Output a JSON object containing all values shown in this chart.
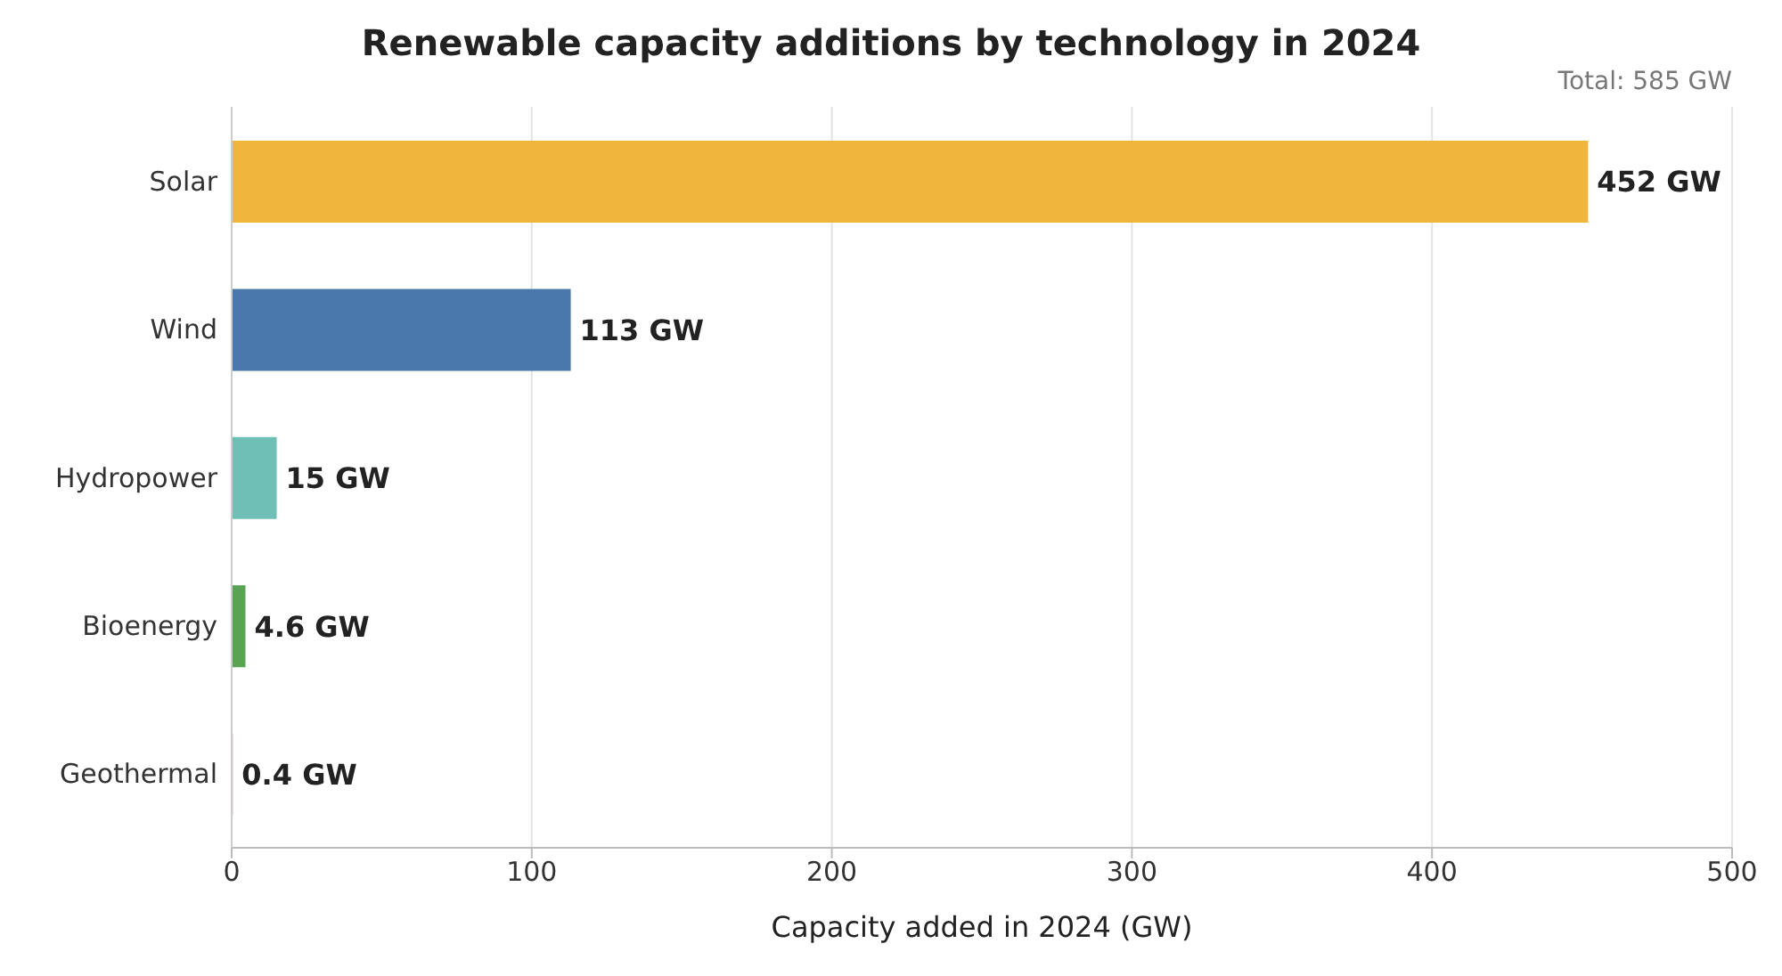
{
  "chart_data": {
    "type": "bar",
    "orientation": "horizontal",
    "title": "Renewable capacity additions by technology in 2024",
    "xlabel": "Capacity added in 2024 (GW)",
    "categories": [
      "Solar",
      "Wind",
      "Hydropower",
      "Bioenergy",
      "Geothermal"
    ],
    "values": [
      452,
      113,
      15,
      4.6,
      0.4
    ],
    "colors": [
      "#f0b53d",
      "#4a78ad",
      "#6fbfb7",
      "#5aa352",
      "#c8a0a0"
    ],
    "value_labels": [
      "452 GW",
      "113 GW",
      "15 GW",
      "4.6 GW",
      "0.4 GW"
    ],
    "xlim": [
      0,
      500
    ],
    "xticks": [
      0,
      100,
      200,
      300,
      400,
      500
    ],
    "grid": "x",
    "annotations": [
      "Total: 585 GW"
    ]
  }
}
